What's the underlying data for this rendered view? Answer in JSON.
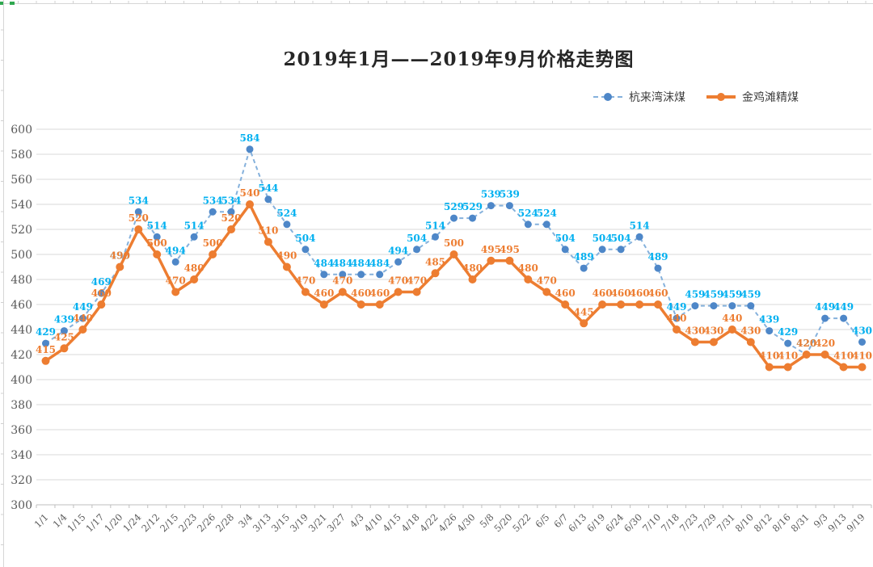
{
  "chart_data": {
    "type": "line",
    "title": "2019年1月——2019年9月价格走势图",
    "categories": [
      "1/1",
      "1/4",
      "1/15",
      "1/17",
      "1/20",
      "1/24",
      "2/12",
      "2/15",
      "2/23",
      "2/26",
      "2/28",
      "3/4",
      "3/13",
      "3/15",
      "3/19",
      "3/21",
      "3/27",
      "4/3",
      "4/10",
      "4/15",
      "4/18",
      "4/22",
      "4/26",
      "4/30",
      "5/8",
      "5/20",
      "5/22",
      "6/5",
      "6/7",
      "6/13",
      "6/19",
      "6/24",
      "6/30",
      "7/10",
      "7/18",
      "7/23",
      "7/29",
      "7/31",
      "8/10",
      "8/12",
      "8/16",
      "8/31",
      "9/3",
      "9/13",
      "9/19"
    ],
    "series": [
      {
        "name": "杭来湾沫煤",
        "values": [
          429,
          439,
          449,
          469,
          490,
          534,
          514,
          494,
          514,
          534,
          534,
          584,
          544,
          524,
          504,
          484,
          484,
          484,
          484,
          494,
          504,
          514,
          529,
          529,
          539,
          539,
          524,
          524,
          504,
          489,
          504,
          504,
          514,
          489,
          449,
          459,
          459,
          459,
          459,
          439,
          429,
          420,
          449,
          449,
          430
        ],
        "line_style": "dashed",
        "line_color": "#85b1dc",
        "marker_color": "#4e87c8",
        "label_color": "#00b0f0"
      },
      {
        "name": "金鸡滩精煤",
        "values": [
          415,
          425,
          440,
          460,
          490,
          520,
          500,
          470,
          480,
          500,
          520,
          540,
          510,
          490,
          470,
          460,
          470,
          460,
          460,
          470,
          470,
          485,
          500,
          480,
          495,
          495,
          480,
          470,
          460,
          445,
          460,
          460,
          460,
          460,
          440,
          430,
          430,
          440,
          430,
          410,
          410,
          420,
          420,
          410,
          410
        ],
        "line_style": "solid",
        "line_color": "#ed7d31",
        "marker_color": "#ed7d31",
        "label_color": "#ed7d31"
      }
    ],
    "ylim": [
      300,
      600
    ],
    "yticks": [
      300,
      320,
      340,
      360,
      380,
      400,
      420,
      440,
      460,
      480,
      500,
      520,
      540,
      560,
      580,
      600
    ],
    "grid": true,
    "legend_position": "top-right",
    "axis_label_color": "#595959",
    "gridline_color": "#d9d9d9",
    "axis_line_color": "#bfbfbf"
  }
}
